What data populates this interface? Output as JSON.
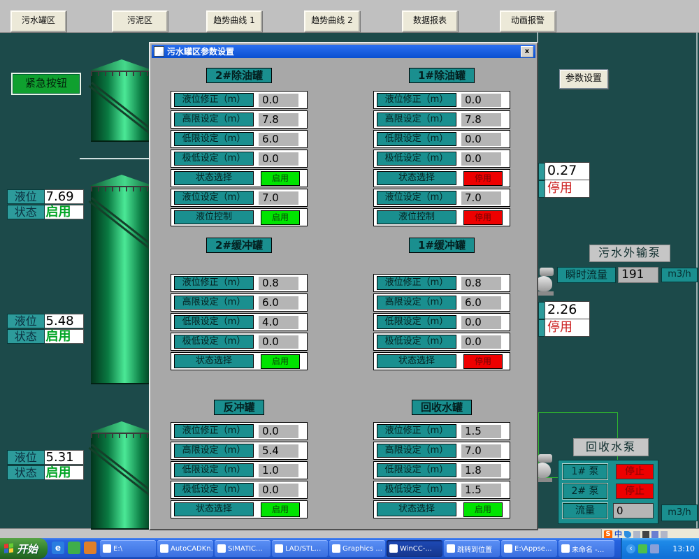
{
  "top_nav": {
    "buttons": [
      {
        "label": "污水罐区"
      },
      {
        "label": "污泥区"
      },
      {
        "label": "趋势曲线 1"
      },
      {
        "label": "趋势曲线 2"
      },
      {
        "label": "数据报表"
      },
      {
        "label": "动画报警"
      }
    ]
  },
  "dialog": {
    "title": "污水罐区参数设置",
    "close_label": "x",
    "panels": [
      {
        "title": "2#除油罐",
        "rows": [
          {
            "label": "液位修正（m）",
            "type": "value",
            "value": "0.0"
          },
          {
            "label": "高限设定（m）",
            "type": "value",
            "value": "7.8"
          },
          {
            "label": "低限设定（m）",
            "type": "value",
            "value": "6.0"
          },
          {
            "label": "极低设定（m）",
            "type": "value",
            "value": "0.0"
          },
          {
            "label": "状态选择",
            "type": "state",
            "value": "启用",
            "on": true
          },
          {
            "label": "液位设定（m）",
            "type": "value",
            "value": "7.0"
          },
          {
            "label": "液位控制",
            "type": "state",
            "value": "启用",
            "on": true
          }
        ]
      },
      {
        "title": "1#除油罐",
        "rows": [
          {
            "label": "液位修正（m）",
            "type": "value",
            "value": "0.0"
          },
          {
            "label": "高限设定（m）",
            "type": "value",
            "value": "7.8"
          },
          {
            "label": "低限设定（m）",
            "type": "value",
            "value": "0.0"
          },
          {
            "label": "极低设定（m）",
            "type": "value",
            "value": "0.0"
          },
          {
            "label": "状态选择",
            "type": "state",
            "value": "停用",
            "on": false
          },
          {
            "label": "液位设定（m）",
            "type": "value",
            "value": "7.0"
          },
          {
            "label": "液位控制",
            "type": "state",
            "value": "停用",
            "on": false
          }
        ]
      },
      {
        "title": "2#缓冲罐",
        "rows": [
          {
            "label": "液位修正（m）",
            "type": "value",
            "value": "0.8"
          },
          {
            "label": "高限设定（m）",
            "type": "value",
            "value": "6.0"
          },
          {
            "label": "低限设定（m）",
            "type": "value",
            "value": "4.0"
          },
          {
            "label": "极低设定（m）",
            "type": "value",
            "value": "0.0"
          },
          {
            "label": "状态选择",
            "type": "state",
            "value": "启用",
            "on": true
          }
        ]
      },
      {
        "title": "1#缓冲罐",
        "rows": [
          {
            "label": "液位修正（m）",
            "type": "value",
            "value": "0.8"
          },
          {
            "label": "高限设定（m）",
            "type": "value",
            "value": "6.0"
          },
          {
            "label": "低限设定（m）",
            "type": "value",
            "value": "0.0"
          },
          {
            "label": "极低设定（m）",
            "type": "value",
            "value": "0.0"
          },
          {
            "label": "状态选择",
            "type": "state",
            "value": "停用",
            "on": false
          }
        ]
      },
      {
        "title": "反冲罐",
        "rows": [
          {
            "label": "液位修正（m）",
            "type": "value",
            "value": "0.0"
          },
          {
            "label": "高限设定（m）",
            "type": "value",
            "value": "5.4"
          },
          {
            "label": "低限设定（m）",
            "type": "value",
            "value": "1.0"
          },
          {
            "label": "极低设定（m）",
            "type": "value",
            "value": "0.0"
          },
          {
            "label": "状态选择",
            "type": "state",
            "value": "启用",
            "on": true
          }
        ]
      },
      {
        "title": "回收水罐",
        "rows": [
          {
            "label": "液位修正（m）",
            "type": "value",
            "value": "1.5"
          },
          {
            "label": "高限设定（m）",
            "type": "value",
            "value": "7.0"
          },
          {
            "label": "低限设定（m）",
            "type": "value",
            "value": "1.8"
          },
          {
            "label": "极低设定（m）",
            "type": "value",
            "value": "1.5"
          },
          {
            "label": "状态选择",
            "type": "state",
            "value": "启用",
            "on": true
          }
        ]
      }
    ]
  },
  "left_panel": {
    "emergency_button": "紧急按钮",
    "level_label": "液位",
    "status_label": "状态",
    "tanks": [
      {
        "level": "7.69",
        "status": "启用"
      },
      {
        "level": "5.48",
        "status": "启用"
      },
      {
        "level": "5.31",
        "status": "启用"
      }
    ]
  },
  "right_panel": {
    "params_button": "参数设置",
    "valve_top": {
      "value": "0.27",
      "status": "停用"
    },
    "outlet_pump": {
      "title": "污水外输泵",
      "flow_label": "瞬时流量",
      "flow_value": "191",
      "flow_unit": "m3/h",
      "value": "2.26",
      "status": "停用"
    },
    "recycle_pump": {
      "title": "回收水泵",
      "rows": [
        {
          "label": "1# 泵",
          "status": "停止"
        },
        {
          "label": "2# 泵",
          "status": "停止"
        }
      ],
      "flow_label": "流量",
      "flow_value": "0",
      "flow_unit": "m3/h"
    }
  },
  "language_bar": {
    "sogou": "S",
    "lang": "中"
  },
  "taskbar": {
    "start_label": "开始",
    "tasks": [
      {
        "label": "E:\\",
        "active": false
      },
      {
        "label": "AutoCADKn...",
        "active": false
      },
      {
        "label": "SIMATIC...",
        "active": false
      },
      {
        "label": "LAD/STL...",
        "active": false
      },
      {
        "label": "Graphics ...",
        "active": false
      },
      {
        "label": "WinCC-...",
        "active": true
      },
      {
        "label": "跳转到位置",
        "active": false
      },
      {
        "label": "E:\\Appse...",
        "active": false
      },
      {
        "label": "未命名 -...",
        "active": false
      }
    ],
    "clock": "13:10"
  }
}
